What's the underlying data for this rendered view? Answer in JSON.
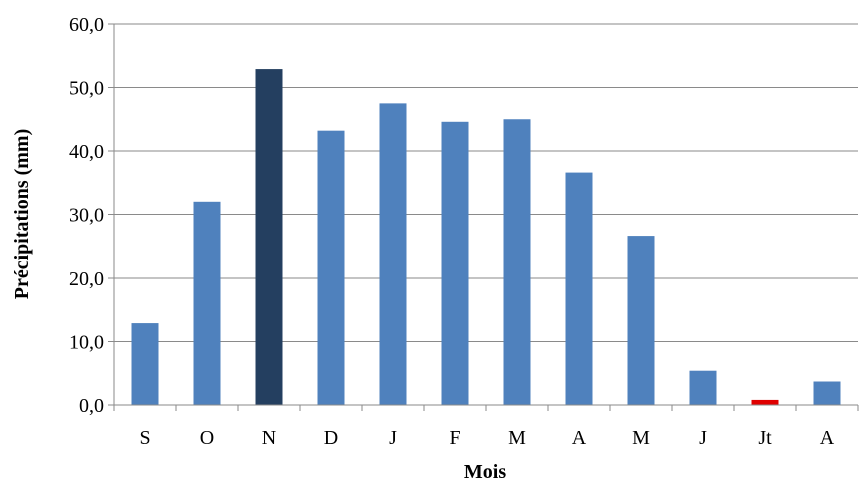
{
  "chart_data": {
    "type": "bar",
    "title": "",
    "xlabel": "Mois",
    "ylabel": "Précipitations (mm)",
    "categories": [
      "S",
      "O",
      "N",
      "D",
      "J",
      "F",
      "M",
      "A",
      "M",
      "J",
      "Jt",
      "A"
    ],
    "values": [
      12.9,
      32.0,
      52.9,
      43.2,
      47.5,
      44.6,
      45.0,
      36.6,
      26.6,
      5.4,
      0.8,
      3.7
    ],
    "colors": [
      "#4f81bd",
      "#4f81bd",
      "#243f60",
      "#4f81bd",
      "#4f81bd",
      "#4f81bd",
      "#4f81bd",
      "#4f81bd",
      "#4f81bd",
      "#4f81bd",
      "#e00000",
      "#4f81bd"
    ],
    "ylim": [
      0,
      60
    ],
    "yticks": [
      "0,0",
      "10,0",
      "20,0",
      "30,0",
      "40,0",
      "50,0",
      "60,0"
    ],
    "grid": true,
    "legend": "none"
  }
}
